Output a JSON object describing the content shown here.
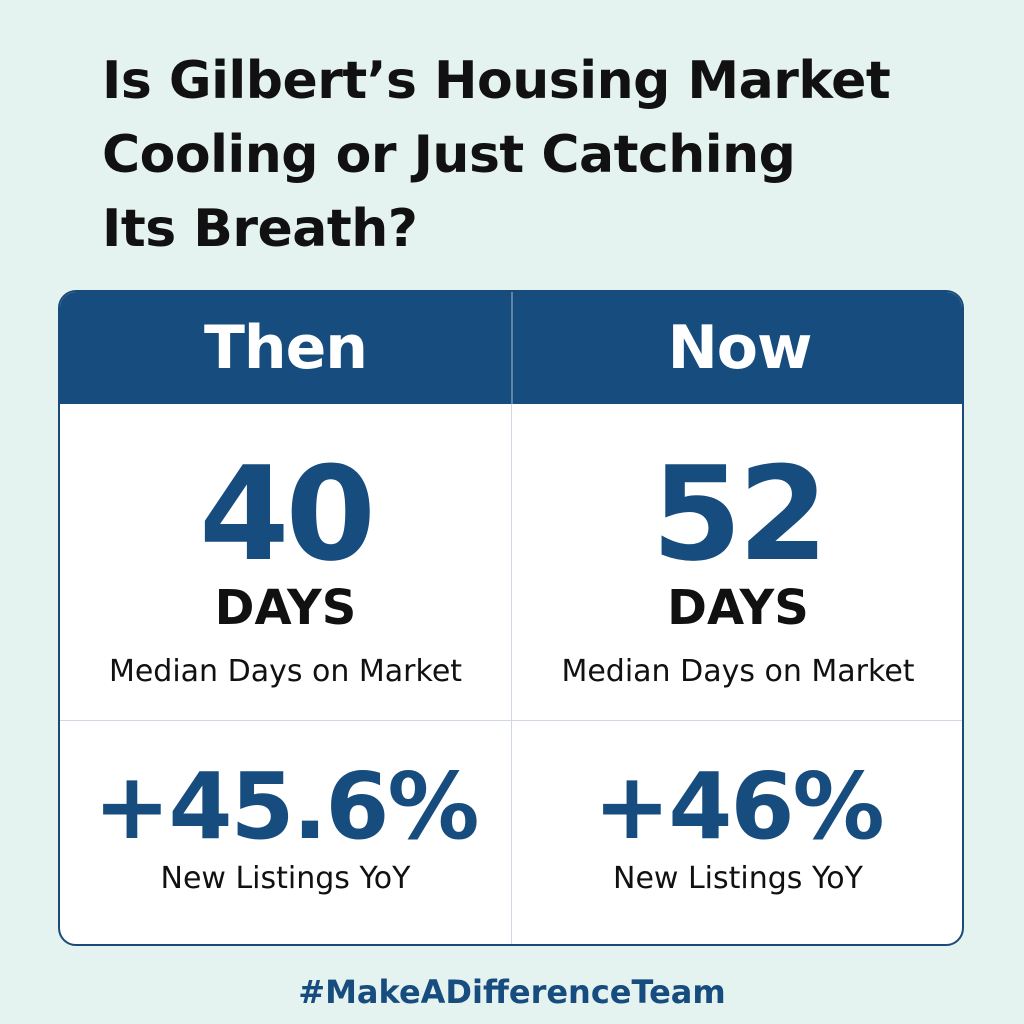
{
  "headline": {
    "line1": "Is Gilbert’s Housing Market",
    "line2": "Cooling or Just Catching",
    "line3": "Its Breath?"
  },
  "colors": {
    "background": "#e4f2f0",
    "accent": "#174c7e",
    "text": "#111111",
    "card": "#ffffff"
  },
  "table": {
    "columns": [
      {
        "heading": "Then",
        "days_value": "40",
        "days_unit": "DAYS",
        "days_caption": "Median Days on Market",
        "listings_value": "+45.6%",
        "listings_caption": "New Listings YoY"
      },
      {
        "heading": "Now",
        "days_value": "52",
        "days_unit": "DAYS",
        "days_caption": "Median Days on Market",
        "listings_value": "+46%",
        "listings_caption": "New Listings YoY"
      }
    ]
  },
  "footer": {
    "hashtag": "#MakeADifferenceTeam"
  }
}
